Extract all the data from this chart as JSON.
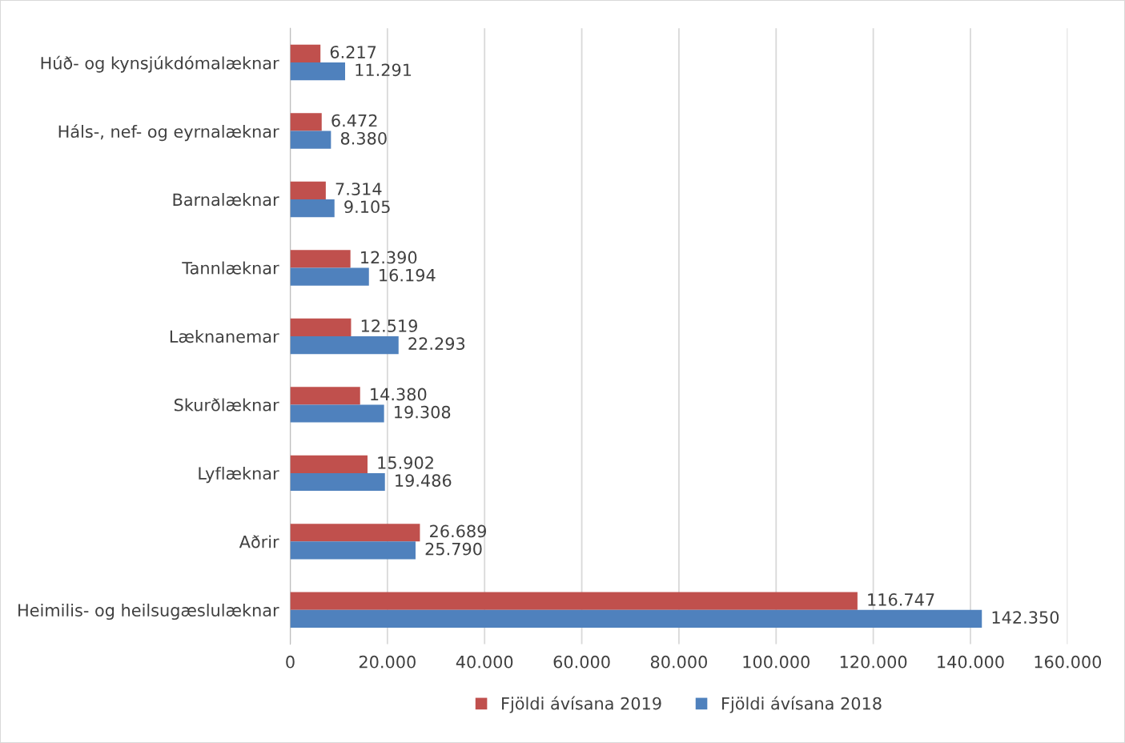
{
  "chart_data": {
    "type": "bar",
    "orientation": "horizontal",
    "categories": [
      "Húð- og kynsjúkdómalæknar",
      "Háls-, nef- og eyrnalæknar",
      "Barnalæknar",
      "Tannlæknar",
      "Læknanemar",
      "Skurðlæknar",
      "Lyflæknar",
      "Aðrir",
      "Heimilis- og heilsugæslulæknar"
    ],
    "series": [
      {
        "name": "Fjöldi ávísana 2019",
        "color": "#c0504d",
        "values": [
          6217,
          6472,
          7314,
          12390,
          12519,
          14380,
          15902,
          26689,
          116747
        ],
        "value_labels": [
          "6.217",
          "6.472",
          "7.314",
          "12.390",
          "12.519",
          "14.380",
          "15.902",
          "26.689",
          "116.747"
        ]
      },
      {
        "name": "Fjöldi ávísana 2018",
        "color": "#4f81bd",
        "values": [
          11291,
          8380,
          9105,
          16194,
          22293,
          19308,
          19486,
          25790,
          142350
        ],
        "value_labels": [
          "11.291",
          "8.380",
          "9.105",
          "16.194",
          "22.293",
          "19.308",
          "19.486",
          "25.790",
          "142.350"
        ]
      }
    ],
    "xlim": [
      0,
      160000
    ],
    "xticks": [
      0,
      {
        "value": 20000,
        "label": "20.000"
      },
      {
        "value": 40000,
        "label": "40.000"
      },
      {
        "value": 60000,
        "label": "60.000"
      },
      {
        "value": 80000,
        "label": "80.000"
      },
      {
        "value": 100000,
        "label": "100.000"
      },
      {
        "value": 120000,
        "label": "120.000"
      },
      {
        "value": 140000,
        "label": "140.000"
      },
      {
        "value": 160000,
        "label": "160.000"
      }
    ],
    "grid": "x",
    "legend": "bottom"
  }
}
